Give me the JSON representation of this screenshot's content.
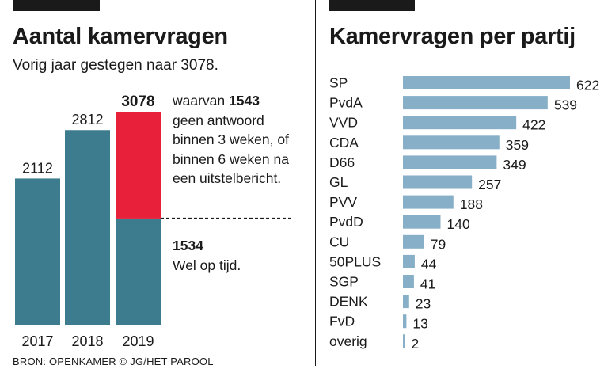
{
  "colors": {
    "bar_teal": "#3d7b8e",
    "bar_red": "#e8203a",
    "bar_light": "#87afc7",
    "text": "#1a1a1a",
    "background": "#ffffff"
  },
  "left_panel": {
    "title": "Aantal kamervragen",
    "subtitle": "Vorig jaar gestegen naar 3078.",
    "note_top": {
      "prefix": "waarvan ",
      "value": "1543",
      "text": "geen antwoord binnen 3 weken, of binnen 6 weken na een uitstelbericht."
    },
    "note_bottom": {
      "value": "1534",
      "text": "Wel op tijd."
    }
  },
  "right_panel": {
    "title": "Kamervragen per partij"
  },
  "source": "BRON: OPENKAMER © JG/HET PAROOL",
  "chart_data": [
    {
      "type": "bar",
      "title": "Aantal kamervragen",
      "categories": [
        "2017",
        "2018",
        "2019"
      ],
      "values": [
        2112,
        2812,
        3078
      ],
      "value_labels": [
        "2112",
        "2812",
        "3078"
      ],
      "stack_2019": {
        "late": 1543,
        "on_time": 1534
      },
      "ylim": [
        0,
        3078
      ]
    },
    {
      "type": "bar",
      "orientation": "horizontal",
      "title": "Kamervragen per partij",
      "categories": [
        "SP",
        "PvdA",
        "VVD",
        "CDA",
        "D66",
        "GL",
        "PVV",
        "PvdD",
        "CU",
        "50PLUS",
        "SGP",
        "DENK",
        "FvD",
        "overig"
      ],
      "values": [
        622,
        539,
        422,
        359,
        349,
        257,
        188,
        140,
        79,
        44,
        41,
        23,
        13,
        2
      ],
      "xlim": [
        0,
        622
      ]
    }
  ]
}
